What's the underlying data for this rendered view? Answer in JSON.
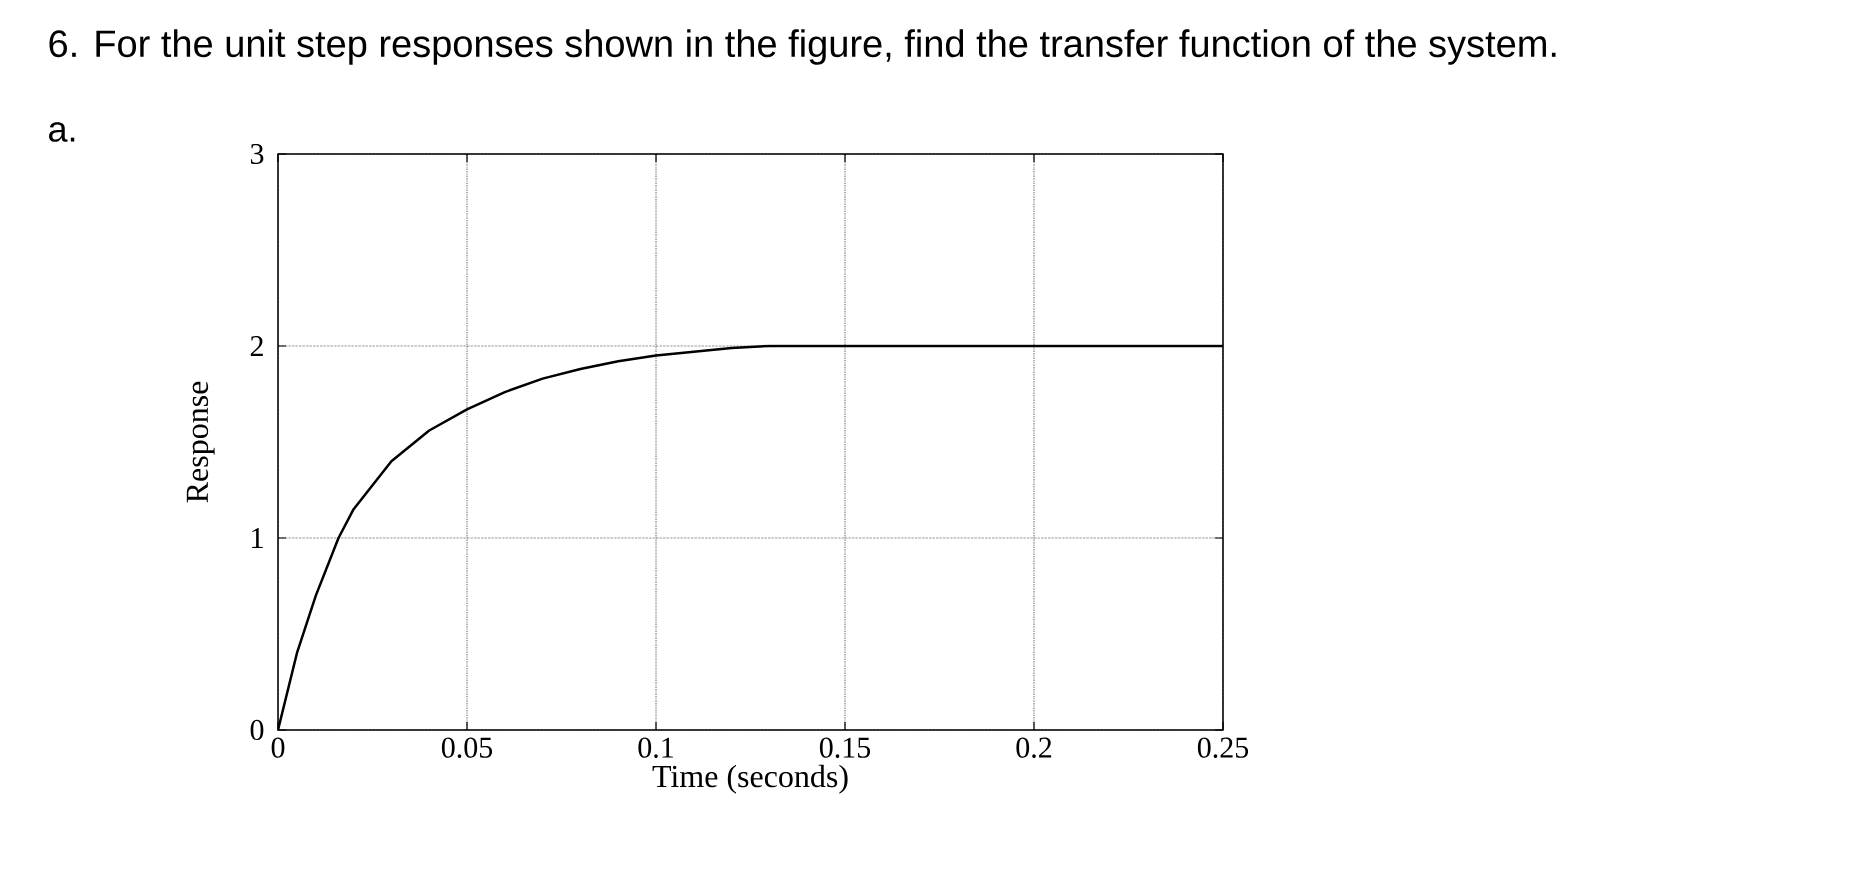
{
  "chart_data": {
    "type": "line",
    "title": "6. For the unit step responses shown in the figure, find the transfer function of the system.",
    "annotations": [
      "a."
    ],
    "xlabel": "Time (seconds)",
    "ylabel": "Response",
    "x": [
      0,
      0.005,
      0.01,
      0.016,
      0.02,
      0.03,
      0.04,
      0.05,
      0.06,
      0.07,
      0.08,
      0.09,
      0.1,
      0.11,
      0.12,
      0.13,
      0.25
    ],
    "series": [
      {
        "color": "#000000",
        "values": [
          0,
          0.4,
          0.7,
          1.0,
          1.15,
          1.4,
          1.56,
          1.67,
          1.76,
          1.83,
          1.88,
          1.92,
          1.95,
          1.97,
          1.99,
          2.0,
          2.0
        ]
      }
    ],
    "xlim": [
      0,
      0.25
    ],
    "ylim": [
      0,
      3
    ],
    "xticks": [
      0,
      0.05,
      0.1,
      0.15,
      0.2,
      0.25
    ],
    "yticks": [
      0,
      1,
      2,
      3
    ],
    "grid": true,
    "marker": "none",
    "line_style": "solid"
  }
}
